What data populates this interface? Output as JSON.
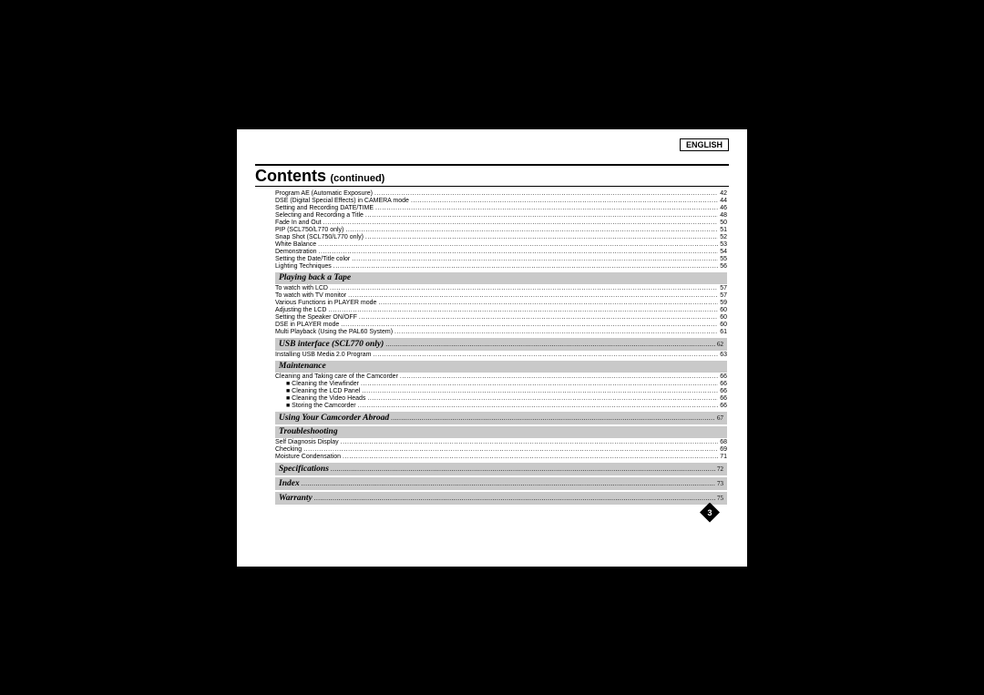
{
  "language_label": "ENGLISH",
  "title": {
    "main": "Contents",
    "sub": "(continued)"
  },
  "page_number": "3",
  "top_entries": [
    {
      "label": "Program AE (Automatic Exposure)",
      "page": "42"
    },
    {
      "label": "DSE (Digital Special Effects) in CAMERA mode",
      "page": "44"
    },
    {
      "label": "Setting and Recording DATE/TIME",
      "page": "46"
    },
    {
      "label": "Selecting and Recording a Title",
      "page": "48"
    },
    {
      "label": "Fade In and Out",
      "page": "50"
    },
    {
      "label": "PIP (SCL750/L770 only)",
      "page": "51"
    },
    {
      "label": "Snap Shot (SCL750/L770 only)",
      "page": "52"
    },
    {
      "label": "White Balance",
      "page": "53"
    },
    {
      "label": "Demonstration",
      "page": "54"
    },
    {
      "label": "Setting the Date/Title color",
      "page": "55"
    },
    {
      "label": "Lighting Techniques",
      "page": "56"
    }
  ],
  "sections": [
    {
      "heading": "Playing back a Tape",
      "heading_page": null,
      "entries": [
        {
          "label": "To watch with LCD",
          "page": "57"
        },
        {
          "label": "To watch with TV monitor",
          "page": "57"
        },
        {
          "label": "Various Functions in PLAYER mode",
          "page": "59"
        },
        {
          "label": "Adjusting the LCD",
          "page": "60"
        },
        {
          "label": "Setting the Speaker ON/OFF",
          "page": "60"
        },
        {
          "label": "DSE in PLAYER mode",
          "page": "60"
        },
        {
          "label": "Multi Playback (Using the PAL60 System)",
          "page": "61"
        }
      ]
    },
    {
      "heading": "USB interface (SCL770 only)",
      "heading_page": "62",
      "entries": [
        {
          "label": "Installing USB Media 2.0 Program",
          "page": "63"
        }
      ]
    },
    {
      "heading": "Maintenance",
      "heading_page": null,
      "entries": [
        {
          "label": "Cleaning and Taking care of the Camcorder",
          "page": "66"
        },
        {
          "label": "Cleaning the Viewfinder",
          "page": "66",
          "bullet": true
        },
        {
          "label": "Cleaning the LCD Panel",
          "page": "66",
          "bullet": true
        },
        {
          "label": "Cleaning the Video Heads",
          "page": "66",
          "bullet": true
        },
        {
          "label": "Storing the Camcorder",
          "page": "66",
          "bullet": true
        }
      ]
    },
    {
      "heading": "Using Your Camcorder Abroad",
      "heading_page": "67",
      "entries": []
    },
    {
      "heading": "Troubleshooting",
      "heading_page": null,
      "entries": [
        {
          "label": "Self Diagnosis Display",
          "page": "68"
        },
        {
          "label": "Checking",
          "page": "69"
        },
        {
          "label": "Moisture Condensation",
          "page": "71"
        }
      ]
    },
    {
      "heading": "Specifications",
      "heading_page": "72",
      "entries": []
    },
    {
      "heading": "Index",
      "heading_page": "73",
      "entries": []
    },
    {
      "heading": "Warranty",
      "heading_page": "75",
      "entries": []
    }
  ]
}
